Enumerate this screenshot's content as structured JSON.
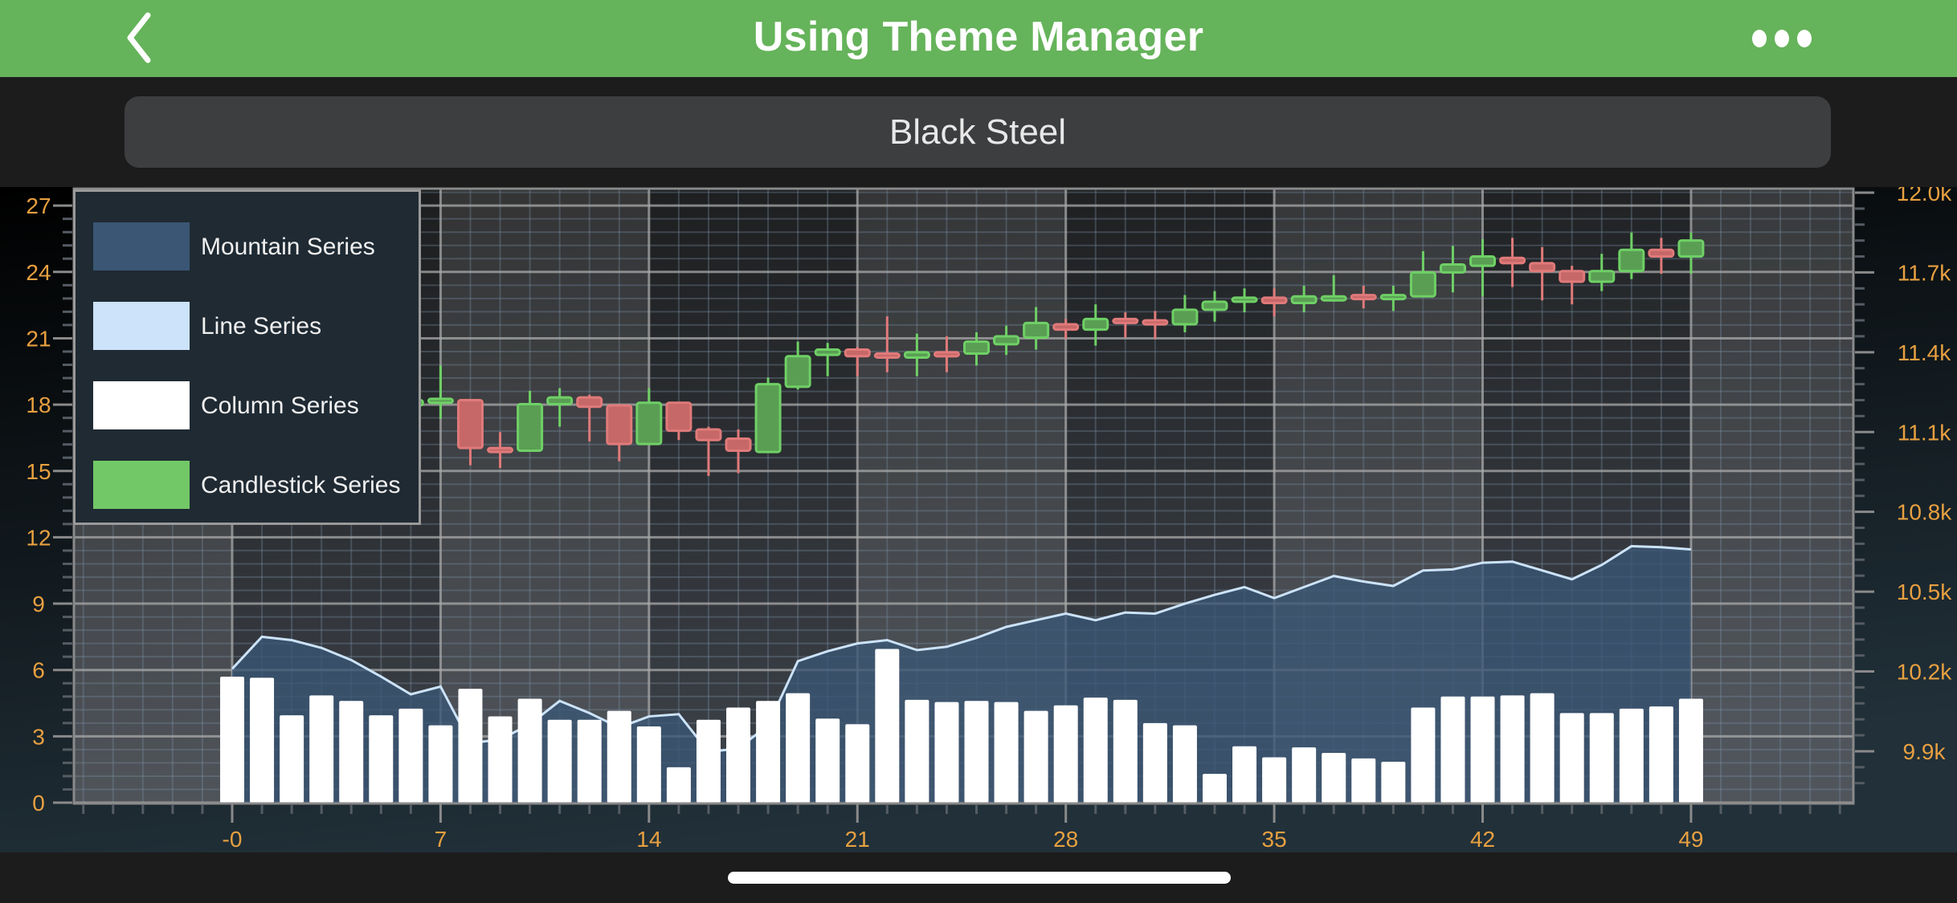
{
  "header": {
    "title": "Using Theme Manager",
    "back_icon": "chevron-left-icon",
    "more_icon": "ellipsis-icon"
  },
  "theme_selector": {
    "selected": "Black Steel"
  },
  "colors": {
    "header_bg": "#65b35a",
    "page_bg": "#1c1c1c",
    "dropdown_bg": "#3d3e40",
    "axis_label": "#e8a040",
    "mountain_fill": "#3a5674",
    "line_stroke": "#cce3fa",
    "column_fill": "#ffffff",
    "candle_up_fill": "#5a9e54",
    "candle_up_stroke": "#6fd066",
    "candle_down_fill": "#c76868",
    "candle_down_stroke": "#e07a7a"
  },
  "legend": {
    "items": [
      {
        "label": "Mountain Series",
        "color": "#3a5674"
      },
      {
        "label": "Line Series",
        "color": "#cce3fa"
      },
      {
        "label": "Column Series",
        "color": "#ffffff"
      },
      {
        "label": "Candlestick Series",
        "color": "#72c866"
      }
    ]
  },
  "chart_data": {
    "type": "combined",
    "title": "",
    "xlabel": "",
    "ylabel_left": "",
    "ylabel_right": "",
    "x_ticks": [
      "-0",
      "7",
      "14",
      "21",
      "28",
      "35",
      "42",
      "49"
    ],
    "x_tick_values": [
      0,
      7,
      14,
      21,
      28,
      35,
      42,
      49
    ],
    "xlim": [
      -5.3,
      54.5
    ],
    "y_left_ticks": [
      "0",
      "3",
      "6",
      "9",
      "12",
      "15",
      "18",
      "21",
      "24",
      "27"
    ],
    "y_left_tick_values": [
      0,
      3,
      6,
      9,
      12,
      15,
      18,
      21,
      24,
      27
    ],
    "ylim_left": [
      -0.1,
      27.8
    ],
    "y_right_ticks": [
      "9.9k",
      "10.2k",
      "10.5k",
      "10.8k",
      "11.1k",
      "11.4k",
      "11.7k",
      "12.0k"
    ],
    "y_right_tick_values": [
      9900,
      10200,
      10500,
      10800,
      11100,
      11400,
      11700,
      12000
    ],
    "grid": true,
    "legend_position": "top-left",
    "x": [
      0,
      1,
      2,
      3,
      4,
      5,
      6,
      7,
      8,
      9,
      10,
      11,
      12,
      13,
      14,
      15,
      16,
      17,
      18,
      19,
      20,
      21,
      22,
      23,
      24,
      25,
      26,
      27,
      28,
      29,
      30,
      31,
      32,
      33,
      34,
      35,
      36,
      37,
      38,
      39,
      40,
      41,
      42,
      43,
      44,
      45,
      46,
      47,
      48,
      49
    ],
    "series": [
      {
        "name": "Mountain Series",
        "type": "area",
        "axis": "left",
        "values": [
          6.05,
          7.5,
          7.35,
          7.0,
          6.45,
          5.7,
          4.9,
          5.25,
          2.7,
          2.85,
          3.55,
          4.6,
          4.05,
          3.4,
          3.9,
          4.0,
          2.3,
          2.45,
          3.5,
          6.4,
          6.85,
          7.2,
          7.35,
          6.9,
          7.05,
          7.45,
          7.95,
          8.25,
          8.55,
          8.25,
          8.6,
          8.55,
          9.0,
          9.4,
          9.75,
          9.25,
          9.75,
          10.25,
          10.0,
          9.8,
          10.5,
          10.55,
          10.85,
          10.9,
          10.5,
          10.1,
          10.75,
          11.6,
          11.55,
          11.45
        ]
      },
      {
        "name": "Line Series",
        "type": "line",
        "axis": "left",
        "values": [
          6.05,
          7.5,
          7.35,
          7.0,
          6.45,
          5.7,
          4.9,
          5.25,
          2.7,
          2.85,
          3.55,
          4.6,
          4.05,
          3.4,
          3.9,
          4.0,
          2.3,
          2.45,
          3.5,
          6.4,
          6.85,
          7.2,
          7.35,
          6.9,
          7.05,
          7.45,
          7.95,
          8.25,
          8.55,
          8.25,
          8.6,
          8.55,
          9.0,
          9.4,
          9.75,
          9.25,
          9.75,
          10.25,
          10.0,
          9.8,
          10.5,
          10.55,
          10.85,
          10.9,
          10.5,
          10.1,
          10.75,
          11.6,
          11.55,
          11.45
        ]
      },
      {
        "name": "Column Series",
        "type": "bar",
        "axis": "left",
        "values": [
          5.7,
          5.65,
          3.95,
          4.85,
          4.6,
          3.95,
          4.25,
          3.5,
          5.15,
          3.9,
          4.7,
          3.75,
          3.75,
          4.15,
          3.45,
          1.6,
          3.75,
          4.3,
          4.6,
          4.95,
          3.8,
          3.55,
          6.95,
          4.65,
          4.55,
          4.6,
          4.55,
          4.15,
          4.4,
          4.75,
          4.65,
          3.6,
          3.5,
          1.3,
          2.55,
          2.05,
          2.5,
          2.25,
          2.0,
          1.85,
          4.3,
          4.8,
          4.8,
          4.85,
          4.95,
          4.05,
          4.05,
          4.25,
          4.35,
          4.7
        ]
      },
      {
        "name": "Candlestick Series",
        "type": "candlestick",
        "axis": "right",
        "visible_from_index": 7,
        "ohlc": [
          [
            11000,
            11050,
            10950,
            11010
          ],
          [
            11010,
            11080,
            10980,
            11060
          ],
          [
            11060,
            11120,
            11020,
            11090
          ],
          [
            11090,
            11150,
            11050,
            11130
          ],
          [
            11130,
            11190,
            11100,
            11170
          ],
          [
            11170,
            11210,
            11130,
            11200
          ],
          [
            11200,
            11260,
            11160,
            11220
          ],
          [
            11220,
            11350,
            11150,
            11225
          ],
          [
            11220,
            11225,
            10975,
            11040
          ],
          [
            11040,
            11100,
            10965,
            11025
          ],
          [
            11030,
            11255,
            11030,
            11205
          ],
          [
            11205,
            11265,
            11120,
            11230
          ],
          [
            11230,
            11240,
            11065,
            11195
          ],
          [
            11200,
            11205,
            10990,
            11055
          ],
          [
            11055,
            11265,
            11055,
            11210
          ],
          [
            11210,
            11210,
            11070,
            11105
          ],
          [
            11110,
            11120,
            10935,
            11070
          ],
          [
            11075,
            11110,
            10945,
            11030
          ],
          [
            11025,
            11305,
            11025,
            11280
          ],
          [
            11270,
            11440,
            11260,
            11385
          ],
          [
            11390,
            11435,
            11310,
            11410
          ],
          [
            11410,
            11420,
            11310,
            11385
          ],
          [
            11395,
            11535,
            11325,
            11380
          ],
          [
            11380,
            11470,
            11310,
            11400
          ],
          [
            11400,
            11460,
            11325,
            11395
          ],
          [
            11395,
            11475,
            11350,
            11440
          ],
          [
            11430,
            11500,
            11390,
            11460
          ],
          [
            11455,
            11570,
            11410,
            11510
          ],
          [
            11505,
            11525,
            11450,
            11485
          ],
          [
            11485,
            11580,
            11425,
            11525
          ],
          [
            11525,
            11550,
            11455,
            11515
          ],
          [
            11520,
            11555,
            11450,
            11505
          ],
          [
            11505,
            11615,
            11475,
            11560
          ],
          [
            11560,
            11630,
            11515,
            11590
          ],
          [
            11590,
            11640,
            11550,
            11605
          ],
          [
            11605,
            11640,
            11535,
            11585
          ],
          [
            11585,
            11650,
            11550,
            11610
          ],
          [
            11600,
            11690,
            11590,
            11610
          ],
          [
            11615,
            11650,
            11565,
            11600
          ],
          [
            11605,
            11650,
            11555,
            11615
          ],
          [
            11610,
            11780,
            11610,
            11700
          ],
          [
            11700,
            11800,
            11625,
            11730
          ],
          [
            11725,
            11825,
            11610,
            11760
          ],
          [
            11755,
            11830,
            11645,
            11735
          ],
          [
            11735,
            11795,
            11595,
            11705
          ],
          [
            11705,
            11725,
            11580,
            11665
          ],
          [
            11665,
            11770,
            11630,
            11705
          ],
          [
            11705,
            11850,
            11675,
            11785
          ],
          [
            11785,
            11830,
            11695,
            11760
          ],
          [
            11760,
            11850,
            11695,
            11820
          ]
        ]
      }
    ]
  }
}
